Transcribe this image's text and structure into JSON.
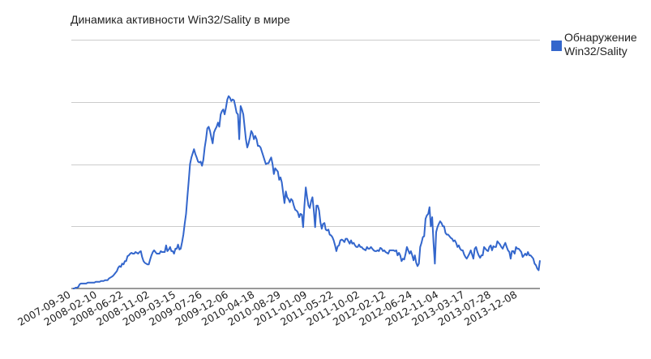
{
  "chart_data": {
    "type": "line",
    "title": "Динамика активности Win32/Sality в мире",
    "xlabel": "",
    "ylabel": "",
    "grid": true,
    "legend_position": "right",
    "series": [
      {
        "name": "Обнаружение Win32/Sality",
        "color": "#3366cc",
        "values": [
          0,
          0,
          1,
          1,
          2,
          5,
          6,
          6,
          6,
          6,
          6,
          7,
          7,
          7,
          7,
          7,
          7,
          8,
          8,
          8,
          8,
          9,
          9,
          9,
          10,
          10,
          10,
          12,
          13,
          14,
          15,
          17,
          19,
          21,
          25,
          27,
          26,
          30,
          29,
          33,
          33,
          39,
          40,
          42,
          43,
          42,
          42,
          44,
          43,
          42,
          44,
          45,
          38,
          33,
          31,
          30,
          29,
          29,
          35,
          40,
          44,
          46,
          44,
          42,
          42,
          42,
          45,
          44,
          44,
          44,
          52,
          45,
          47,
          50,
          45,
          45,
          42,
          48,
          48,
          53,
          47,
          48,
          56,
          65,
          78,
          90,
          110,
          130,
          150,
          158,
          163,
          168,
          162,
          158,
          153,
          152,
          153,
          148,
          155,
          170,
          180,
          193,
          195,
          190,
          182,
          175,
          188,
          192,
          195,
          200,
          195,
          210,
          214,
          216,
          210,
          218,
          228,
          232,
          230,
          226,
          228,
          227,
          220,
          212,
          210,
          180,
          220,
          216,
          210,
          195,
          180,
          170,
          175,
          182,
          190,
          187,
          180,
          184,
          180,
          172,
          172,
          170,
          165,
          160,
          155,
          150,
          151,
          151,
          155,
          158,
          150,
          138,
          145,
          143,
          141,
          131,
          134,
          128,
          115,
          103,
          117,
          110,
          108,
          104,
          108,
          106,
          100,
          95,
          94,
          92,
          86,
          90,
          89,
          74,
          100,
          122,
          110,
          100,
          97,
          105,
          110,
          95,
          74,
          100,
          100,
          94,
          80,
          72,
          78,
          79,
          71,
          70,
          71,
          65,
          64,
          62,
          58,
          52,
          45,
          51,
          52,
          58,
          59,
          58,
          56,
          60,
          60,
          57,
          54,
          58,
          54,
          55,
          52,
          50,
          50,
          53,
          50,
          50,
          48,
          47,
          46,
          50,
          48,
          48,
          50,
          48,
          46,
          45,
          45,
          46,
          45,
          49,
          48,
          45,
          46,
          44,
          43,
          42,
          46,
          46,
          46,
          46,
          45,
          46,
          40,
          43,
          40,
          33,
          36,
          35,
          42,
          50,
          46,
          42,
          45,
          40,
          34,
          40,
          31,
          27,
          30,
          50,
          55,
          62,
          63,
          84,
          88,
          90,
          98,
          75,
          86,
          56,
          30,
          68,
          74,
          78,
          81,
          79,
          75,
          75,
          67,
          65,
          65,
          63,
          61,
          60,
          57,
          58,
          55,
          50,
          52,
          48,
          46,
          46,
          41,
          38,
          36,
          39,
          42,
          46,
          41,
          36,
          48,
          50,
          44,
          40,
          37,
          40,
          40,
          50,
          48,
          46,
          45,
          50,
          52,
          46,
          51,
          50,
          50,
          57,
          55,
          53,
          50,
          48,
          52,
          55,
          50,
          46,
          44,
          36,
          45,
          45,
          42,
          50,
          48,
          48,
          46,
          44,
          38,
          40,
          42,
          40,
          44,
          40,
          40,
          38,
          36,
          30,
          28,
          24,
          22,
          34
        ]
      }
    ],
    "x_tick_labels": [
      "2007-09-30",
      "2008-02-10",
      "2008-06-22",
      "2008-11-02",
      "2009-03-15",
      "2009-07-26",
      "2009-12-06",
      "2010-04-18",
      "2010-08-29",
      "2011-01-09",
      "2011-05-22",
      "2011-10-02",
      "2012-02-12",
      "2012-06-24",
      "2012-11-04",
      "2013-03-17",
      "2013-07-28",
      "2013-12-08"
    ],
    "y_tick_labels": [],
    "ylim": [
      0,
      300
    ],
    "y_gridlines": [
      75,
      150,
      225,
      300
    ]
  },
  "title": "Динамика активности Win32/Sality в мире",
  "legend": {
    "line1": "Обнаружение",
    "line2": "Win32/Sality",
    "color": "#3366cc"
  }
}
